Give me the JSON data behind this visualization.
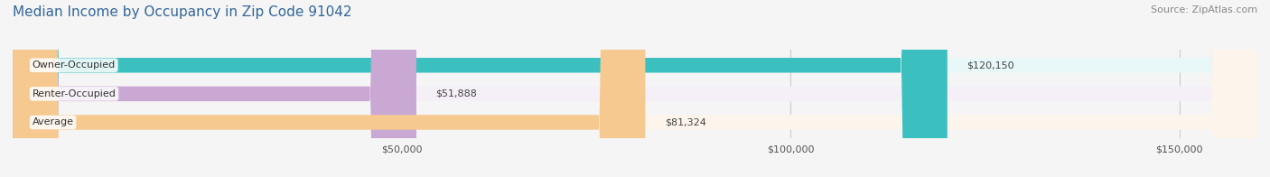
{
  "title": "Median Income by Occupancy in Zip Code 91042",
  "source": "Source: ZipAtlas.com",
  "categories": [
    "Owner-Occupied",
    "Renter-Occupied",
    "Average"
  ],
  "values": [
    120150,
    51888,
    81324
  ],
  "labels": [
    "$120,150",
    "$51,888",
    "$81,324"
  ],
  "bar_colors": [
    "#3bbfbf",
    "#c9a8d4",
    "#f5c990"
  ],
  "bar_bg_colors": [
    "#e8f8f8",
    "#f5f0f8",
    "#fdf5ec"
  ],
  "xmax": 160000,
  "xticks": [
    50000,
    100000,
    150000
  ],
  "xticklabels": [
    "$50,000",
    "$100,000",
    "$150,000"
  ],
  "title_fontsize": 11,
  "source_fontsize": 8,
  "label_fontsize": 8,
  "bar_label_fontsize": 8,
  "bar_height": 0.52,
  "background_color": "#f5f5f5"
}
